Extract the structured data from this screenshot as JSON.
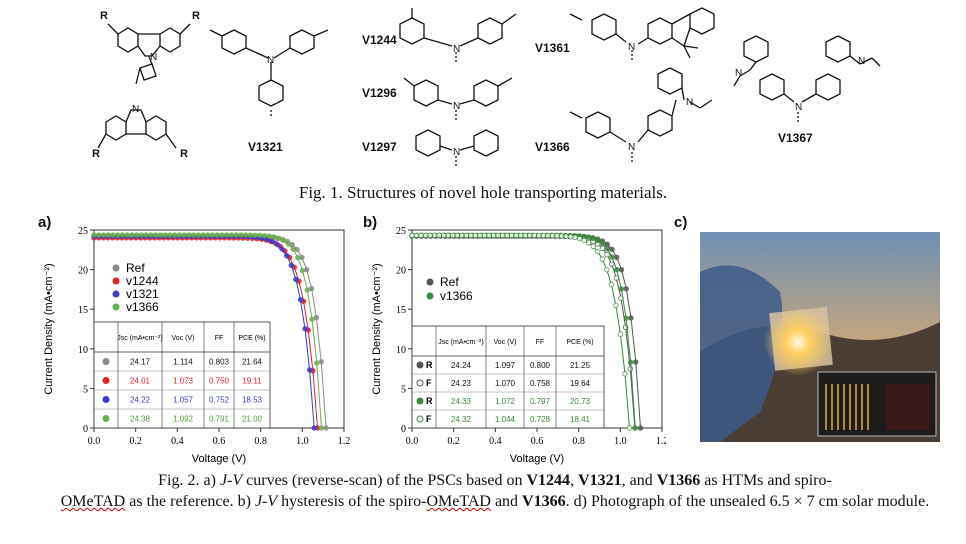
{
  "figure1": {
    "caption": "Fig. 1. Structures of novel hole transporting materials.",
    "molecule_labels": [
      "V1321",
      "V1244",
      "V1296",
      "V1297",
      "V1361",
      "V1366",
      "V1367"
    ],
    "substituent_label": "R"
  },
  "figure2": {
    "panel_a": "a)",
    "panel_b": "b)",
    "panel_c": "c)",
    "caption_parts": {
      "p1": "Fig. 2. a) ",
      "jv1": "J-V",
      "p2": " curves (reverse-scan) of the PSCs based on ",
      "b1": "V1244",
      "p3": ", ",
      "b2": "V1321",
      "p4": ", and ",
      "b3": "V1366",
      "p5": " as HTMs and spiro-",
      "omeTAD1": "OMeTAD",
      "p6": " as the reference. b) ",
      "jv2": "J-V",
      "p7": " hysteresis of the spiro-",
      "omeTAD2": "OMeTAD",
      "p8": " and ",
      "b4": "V1366",
      "p9": ". d) Photograph of the unsealed 6.5 × 7 cm solar module."
    }
  },
  "chart_data": [
    {
      "type": "line",
      "xlabel": "Voltage (V)",
      "ylabel": "Current Density (mA•cm⁻²)",
      "xlim": [
        0.0,
        1.2
      ],
      "ylim": [
        0,
        25
      ],
      "xticks": [
        "0.0",
        "0.2",
        "0.4",
        "0.6",
        "0.8",
        "1.0",
        "1.2"
      ],
      "yticks": [
        "0",
        "5",
        "10",
        "15",
        "20",
        "25"
      ],
      "series": [
        {
          "name": "Ref",
          "color": "#8a8a8a",
          "jsc": 24.17,
          "voc": 1.114
        },
        {
          "name": "v1244",
          "color": "#e02020",
          "jsc": 24.01,
          "voc": 1.073
        },
        {
          "name": "v1321",
          "color": "#3a3ad0",
          "jsc": 24.22,
          "voc": 1.057
        },
        {
          "name": "v1366",
          "color": "#6ab04c",
          "jsc": 24.38,
          "voc": 1.092
        }
      ],
      "table": {
        "headers": [
          "Jsc (mA•cm⁻²)",
          "Voc (V)",
          "FF",
          "PCE (%)"
        ],
        "rows": [
          [
            "24.17",
            "1.114",
            "0.803",
            "21.64"
          ],
          [
            "24.01",
            "1.073",
            "0.750",
            "19.11"
          ],
          [
            "24.22",
            "1.057",
            "0.752",
            "18.53"
          ],
          [
            "24.38",
            "1.092",
            "0.791",
            "21.00"
          ]
        ],
        "row_colors": [
          "#111111",
          "#e02020",
          "#3a3ad0",
          "#4a9a3a"
        ]
      }
    },
    {
      "type": "line",
      "xlabel": "Voltage (V)",
      "ylabel": "Current Density (mA•cm⁻²)",
      "xlim": [
        0.0,
        1.2
      ],
      "ylim": [
        0,
        25
      ],
      "xticks": [
        "0.0",
        "0.2",
        "0.4",
        "0.6",
        "0.8",
        "1.0",
        "1.2"
      ],
      "yticks": [
        "0",
        "5",
        "10",
        "15",
        "20",
        "25"
      ],
      "series": [
        {
          "name": "Ref",
          "color": "#555555",
          "jsc": 24.24,
          "voc": 1.097
        },
        {
          "name": "v1366",
          "color": "#3a8a3a",
          "jsc": 24.33,
          "voc": 1.072
        }
      ],
      "table": {
        "headers": [
          "Jsc (mA•cm⁻²)",
          "Voc (V)",
          "FF",
          "PCE (%)"
        ],
        "row_labels": [
          "R",
          "F",
          "R",
          "F"
        ],
        "rows": [
          [
            "24.24",
            "1.097",
            "0.800",
            "21.25"
          ],
          [
            "24.23",
            "1.070",
            "0.758",
            "19.64"
          ],
          [
            "24.33",
            "1.072",
            "0.797",
            "20.73"
          ],
          [
            "24.32",
            "1.044",
            "0.728",
            "18.41"
          ]
        ],
        "row_colors": [
          "#111111",
          "#111111",
          "#3a8a3a",
          "#3a8a3a"
        ]
      }
    }
  ]
}
